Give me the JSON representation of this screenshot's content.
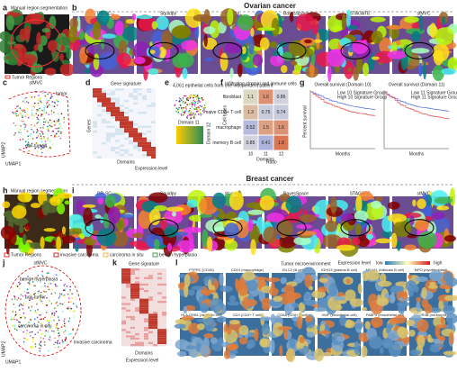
{
  "ovarian": {
    "section_title": "Ovarian cancer",
    "a": {
      "letter": "a",
      "title": "Manual region segmentation",
      "legend": "Tumor Regions"
    },
    "b": {
      "letter": "b",
      "methods": [
        "DR-SC",
        "Squidpy",
        "stLearn",
        "BayesSpace",
        "STAGATE",
        "stMVC"
      ]
    },
    "c": {
      "letter": "c",
      "title": "stMVC",
      "labels": [
        "tumor",
        "non-tumor"
      ],
      "x_label": "UMAP1",
      "y_label": "UMAP2"
    },
    "d": {
      "letter": "d",
      "title": "Gene signature",
      "x_label": "Domains",
      "y_label": "Genes",
      "legend_title": "Expression level"
    },
    "e": {
      "letter": "e",
      "title": "4,061 epithelial cells from one independent patient",
      "legend_title": "Domain 11",
      "y_label": "Domain 12"
    },
    "f": {
      "letter": "f",
      "title": "Infiltrating stromal and immune cells",
      "rows": [
        "fibroblast",
        "naive CD8+ T cell",
        "macrophage",
        "memory B cell"
      ],
      "columns": [
        "10",
        "11",
        "12"
      ],
      "values": [
        [
          1.1,
          1.6,
          0.86
        ],
        [
          1.3,
          0.75,
          0.74
        ],
        [
          0.52,
          1.5,
          1.6
        ],
        [
          0.85,
          0.41,
          1.8
        ]
      ],
      "x_label": "Domains",
      "y_label": "Cell types",
      "legend_title": "Ratio"
    },
    "g": {
      "letter": "g",
      "plots": [
        {
          "title": "Overall survival (Domain 10)",
          "legend": [
            "Low 10 Signature Group",
            "High 10 Signature Group"
          ]
        },
        {
          "title": "Overall survival (Domain 11)",
          "legend": [
            "Low 11 Signature Group",
            "High 11 Signature Group"
          ]
        }
      ],
      "x_label": "Months",
      "y_label": "Percent survival"
    }
  },
  "breast": {
    "section_title": "Breast cancer",
    "h": {
      "letter": "h",
      "title": "Manual region segmentation"
    },
    "i": {
      "letter": "i",
      "methods": [
        "DR-SC",
        "Squidpy",
        "stLearn",
        "BayesSpace",
        "STAGATE",
        "stMVC"
      ]
    },
    "legend": [
      "Tumor Regions",
      "invasive carcinoma",
      "carcinoma in situ",
      "benign hyperplasia"
    ],
    "j": {
      "letter": "j",
      "title": "stMVC",
      "labels": [
        "benign hyperplasia",
        "non-tumor",
        "carcinoma in situ",
        "invasive carcinoma"
      ],
      "x_label": "UMAP1",
      "y_label": "UMAP2"
    },
    "k": {
      "letter": "k",
      "title": "Gene signature",
      "x_label": "Domains",
      "legend_title": "Expression level"
    },
    "l": {
      "letter": "l",
      "title": "Tumor microenvironment",
      "legend_title": "Expression level",
      "low": "low",
      "high": "high",
      "genes": [
        "PTPRC (CD45)",
        "CD14 (macrophage)",
        "IGLC2 (B cell)",
        "IGHG3 (plasma B cell)",
        "MS4A1 (follicular B cell)",
        "MPO (myofibroblast)",
        "HLA-DRB1 (dendritic cell)",
        "CD4 (CD4+ T cell)",
        "CD8A (CD8+ T cell)",
        "VWF (endothelial cell)",
        "FABP4 (endothelial cell)",
        "FCGR3B (neutrophil)"
      ]
    }
  }
}
